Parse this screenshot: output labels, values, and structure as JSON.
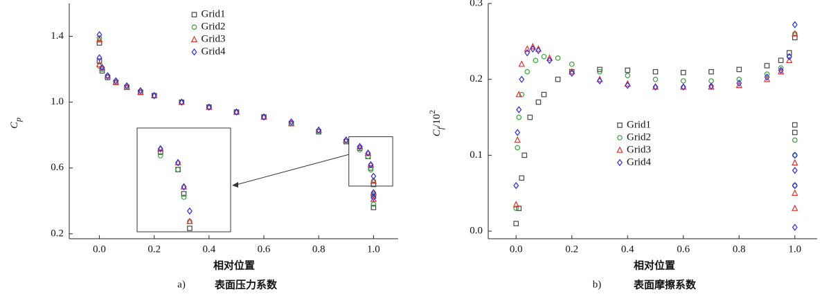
{
  "chart_data": [
    {
      "type": "scatter",
      "ylabel": "C",
      "ylabel_sub": "p",
      "xlabel": "相对位置",
      "caption_label": "a)",
      "caption": "表面压力系数",
      "xlim": [
        -0.11,
        1.09
      ],
      "ylim": [
        0.17,
        1.6
      ],
      "xticks": [
        {
          "value": 0,
          "label": "0.0"
        },
        0.2,
        0.4,
        0.6,
        0.8,
        {
          "value": 1,
          "label": "1.0"
        }
      ],
      "yticks": [
        0.2,
        0.6,
        {
          "value": 1,
          "label": "1.0"
        },
        1.4
      ],
      "legend": "upper center",
      "inset": {
        "xlim": [
          0.91,
          1.07
        ],
        "ylim": [
          0.49,
          0.79
        ]
      },
      "series": [
        {
          "name": "Grid1",
          "color": "#444444",
          "marker": "square",
          "x": [
            0,
            0,
            0.01,
            0.03,
            0.06,
            0.1,
            0.15,
            0.2,
            0.3,
            0.4,
            0.5,
            0.6,
            0.7,
            0.8,
            0.9,
            0.95,
            0.98,
            0.99,
            1,
            1,
            1
          ],
          "values": [
            1.36,
            1.25,
            1.19,
            1.15,
            1.12,
            1.09,
            1.06,
            1.04,
            1.0,
            0.97,
            0.94,
            0.91,
            0.87,
            0.82,
            0.76,
            0.72,
            0.67,
            0.6,
            0.5,
            0.43,
            0.36
          ]
        },
        {
          "name": "Grid2",
          "color": "#3c9a3c",
          "marker": "circle",
          "x": [
            0,
            0,
            0.01,
            0.03,
            0.06,
            0.1,
            0.15,
            0.2,
            0.3,
            0.4,
            0.5,
            0.6,
            0.7,
            0.8,
            0.9,
            0.95,
            0.98,
            0.99,
            1,
            1,
            1
          ],
          "values": [
            1.39,
            1.22,
            1.2,
            1.16,
            1.12,
            1.09,
            1.06,
            1.04,
            1.0,
            0.97,
            0.94,
            0.91,
            0.87,
            0.82,
            0.76,
            0.71,
            0.67,
            0.59,
            0.52,
            0.44,
            0.38
          ]
        },
        {
          "name": "Grid3",
          "color": "#e03030",
          "marker": "triangle",
          "x": [
            0,
            0,
            0.01,
            0.03,
            0.06,
            0.1,
            0.15,
            0.2,
            0.3,
            0.4,
            0.5,
            0.6,
            0.7,
            0.8,
            0.9,
            0.95,
            0.98,
            0.99,
            1,
            1,
            1
          ],
          "values": [
            1.38,
            1.23,
            1.21,
            1.16,
            1.12,
            1.09,
            1.06,
            1.04,
            1.0,
            0.97,
            0.94,
            0.91,
            0.87,
            0.83,
            0.77,
            0.73,
            0.69,
            0.62,
            0.52,
            0.45,
            0.41
          ]
        },
        {
          "name": "Grid4",
          "color": "#2a2ae0",
          "marker": "diamond",
          "x": [
            0,
            0,
            0.01,
            0.03,
            0.06,
            0.1,
            0.15,
            0.2,
            0.3,
            0.4,
            0.5,
            0.6,
            0.7,
            0.8,
            0.9,
            0.95,
            0.98,
            0.99,
            1,
            1,
            1
          ],
          "values": [
            1.41,
            1.27,
            1.21,
            1.16,
            1.13,
            1.1,
            1.07,
            1.04,
            1.0,
            0.97,
            0.94,
            0.91,
            0.88,
            0.83,
            0.77,
            0.73,
            0.69,
            0.62,
            0.55,
            0.45,
            0.42
          ]
        }
      ]
    },
    {
      "type": "scatter",
      "ylabel": "C",
      "ylabel_sub": "f",
      "ylabel_rest": "/10",
      "ylabel_sup": "2",
      "xlabel": "相对位置",
      "caption_label": "b)",
      "caption": "表面摩擦系数",
      "xlim": [
        -0.1,
        1.08
      ],
      "ylim": [
        -0.01,
        0.3
      ],
      "xticks": [
        {
          "value": 0,
          "label": "0.0"
        },
        0.2,
        0.4,
        0.6,
        0.8,
        {
          "value": 1,
          "label": "1.0"
        }
      ],
      "yticks": [
        {
          "value": 0,
          "label": "0.0"
        },
        0.1,
        0.2,
        0.3
      ],
      "legend": "center",
      "series": [
        {
          "name": "Grid1",
          "color": "#444444",
          "marker": "square",
          "x": [
            0,
            0.01,
            0.02,
            0.03,
            0.05,
            0.08,
            0.1,
            0.15,
            0.2,
            0.3,
            0.4,
            0.5,
            0.6,
            0.7,
            0.8,
            0.9,
            0.95,
            0.98,
            1,
            1,
            1
          ],
          "values": [
            0.01,
            0.03,
            0.07,
            0.1,
            0.15,
            0.17,
            0.18,
            0.2,
            0.21,
            0.213,
            0.212,
            0.21,
            0.209,
            0.21,
            0.213,
            0.218,
            0.225,
            0.235,
            0.255,
            0.14,
            0.13
          ]
        },
        {
          "name": "Grid2",
          "color": "#3c9a3c",
          "marker": "circle",
          "x": [
            0,
            0.005,
            0.01,
            0.02,
            0.04,
            0.07,
            0.1,
            0.15,
            0.2,
            0.3,
            0.4,
            0.5,
            0.6,
            0.7,
            0.8,
            0.9,
            0.95,
            0.98,
            1,
            1,
            1,
            1
          ],
          "values": [
            0.03,
            0.11,
            0.15,
            0.18,
            0.21,
            0.225,
            0.23,
            0.228,
            0.22,
            0.21,
            0.205,
            0.2,
            0.198,
            0.198,
            0.2,
            0.207,
            0.215,
            0.23,
            0.26,
            0.12,
            0.1,
            0.06
          ]
        },
        {
          "name": "Grid3",
          "color": "#e03030",
          "marker": "triangle",
          "x": [
            0,
            0.005,
            0.01,
            0.02,
            0.04,
            0.06,
            0.08,
            0.12,
            0.2,
            0.3,
            0.4,
            0.5,
            0.6,
            0.7,
            0.8,
            0.9,
            0.95,
            0.98,
            1,
            1,
            1,
            1
          ],
          "values": [
            0.035,
            0.12,
            0.18,
            0.22,
            0.24,
            0.243,
            0.24,
            0.228,
            0.21,
            0.2,
            0.194,
            0.19,
            0.19,
            0.19,
            0.192,
            0.2,
            0.21,
            0.225,
            0.26,
            0.09,
            0.05,
            0.03
          ]
        },
        {
          "name": "Grid4",
          "color": "#2a2ae0",
          "marker": "diamond",
          "x": [
            0,
            0.005,
            0.01,
            0.02,
            0.04,
            0.06,
            0.08,
            0.12,
            0.2,
            0.3,
            0.4,
            0.5,
            0.6,
            0.7,
            0.8,
            0.9,
            0.95,
            0.98,
            1,
            1,
            1,
            1,
            1
          ],
          "values": [
            0.06,
            0.13,
            0.16,
            0.2,
            0.235,
            0.24,
            0.238,
            0.225,
            0.208,
            0.198,
            0.192,
            0.19,
            0.19,
            0.191,
            0.195,
            0.203,
            0.212,
            0.23,
            0.272,
            0.1,
            0.08,
            0.06,
            0.005
          ]
        }
      ]
    }
  ]
}
